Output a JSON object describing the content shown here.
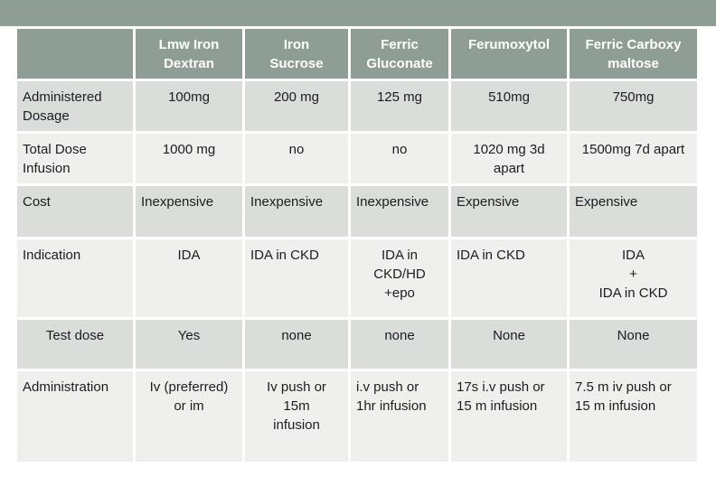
{
  "colors": {
    "sage_green": "#8E9E94",
    "row_band_dark": "#DBDDDB",
    "row_band_light": "#EFEFED",
    "body_text": "#1A1D21",
    "header_text": "#FFFFFF",
    "page_background": "#FFFFFF"
  },
  "table": {
    "header_columns": [
      {
        "text": "",
        "align": "center"
      },
      {
        "text": "Lmw Iron\nDextran",
        "align": "center"
      },
      {
        "text": "Iron\nSucrose",
        "align": "center"
      },
      {
        "text": "Ferric\nGluconate",
        "align": "center"
      },
      {
        "text": "Ferumoxytol",
        "align": "center"
      },
      {
        "text": "Ferric Carboxy\nmaltose",
        "align": "center"
      }
    ],
    "rows": [
      {
        "label": "Administered\nDosage",
        "label_align": "left",
        "band": "dark",
        "cells": [
          {
            "text": "100mg",
            "align": "center"
          },
          {
            "text": "200 mg",
            "align": "center"
          },
          {
            "text": "125 mg",
            "align": "center"
          },
          {
            "text": "510mg",
            "align": "center"
          },
          {
            "text": "750mg",
            "align": "center"
          }
        ]
      },
      {
        "label": "Total Dose\nInfusion",
        "label_align": "left",
        "band": "light",
        "cells": [
          {
            "text": "1000 mg",
            "align": "center"
          },
          {
            "text": "no",
            "align": "center"
          },
          {
            "text": "no",
            "align": "center"
          },
          {
            "text": "1020 mg 3d\napart",
            "align": "center"
          },
          {
            "text": "1500mg 7d apart",
            "align": "center"
          }
        ]
      },
      {
        "label": "Cost",
        "label_align": "left",
        "band": "dark",
        "cells": [
          {
            "text": "Inexpensive",
            "align": "left"
          },
          {
            "text": "Inexpensive",
            "align": "left"
          },
          {
            "text": "Inexpensive",
            "align": "left"
          },
          {
            "text": "Expensive",
            "align": "left"
          },
          {
            "text": "Expensive",
            "align": "left"
          }
        ]
      },
      {
        "label": "Indication",
        "label_align": "left",
        "band": "light",
        "cells": [
          {
            "text": "IDA",
            "align": "center"
          },
          {
            "text": "IDA in CKD",
            "align": "left"
          },
          {
            "text": "IDA in\nCKD/HD\n+epo",
            "align": "center"
          },
          {
            "text": "IDA in CKD",
            "align": "left"
          },
          {
            "text": "IDA\n+\nIDA in CKD",
            "align": "center"
          }
        ]
      },
      {
        "label": "Test dose",
        "label_align": "center",
        "band": "dark",
        "cells": [
          {
            "text": "Yes",
            "align": "center"
          },
          {
            "text": "none",
            "align": "center"
          },
          {
            "text": "none",
            "align": "center"
          },
          {
            "text": "None",
            "align": "center"
          },
          {
            "text": "None",
            "align": "center"
          }
        ]
      },
      {
        "label": "Administration",
        "label_align": "left",
        "band": "light",
        "cells": [
          {
            "text": "Iv (preferred)\nor im",
            "align": "center"
          },
          {
            "text": "Iv push or\n15m\ninfusion",
            "align": "center"
          },
          {
            "text": "i.v push or\n1hr infusion",
            "align": "left"
          },
          {
            "text": "17s i.v push or\n15 m infusion",
            "align": "left"
          },
          {
            "text": "7.5 m iv push or\n15 m infusion",
            "align": "left"
          }
        ]
      }
    ]
  }
}
